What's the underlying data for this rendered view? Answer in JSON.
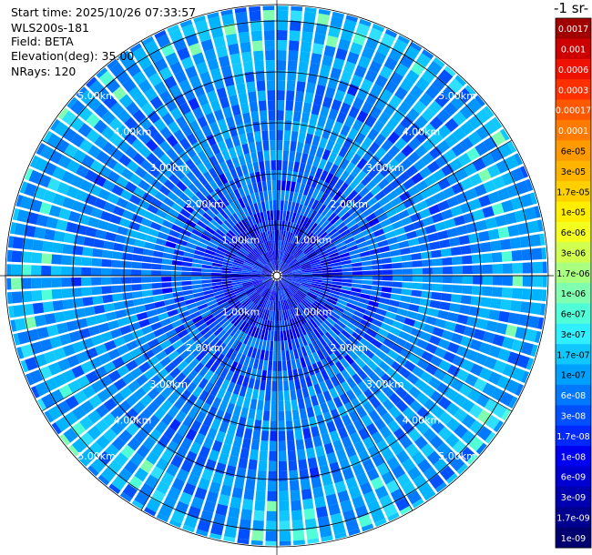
{
  "info": {
    "start_time": "Start time: 2025/10/26 07:33:57",
    "instrument": "WLS200s-181",
    "field": "Field: BETA",
    "elevation": "Elevation(deg): 35.00",
    "nrays": "NRays: 120"
  },
  "colorbar": {
    "unit_label": "-1 sr-",
    "ticks": [
      "0.0017",
      "0.001",
      "0.0006",
      "0.0003",
      "0.00017",
      "0.0001",
      "6e-05",
      "3e-05",
      "1.7e-05",
      "1e-05",
      "6e-06",
      "3e-06",
      "1.7e-06",
      "1e-06",
      "6e-07",
      "3e-07",
      "1.7e-07",
      "1e-07",
      "6e-08",
      "3e-08",
      "1.7e-08",
      "1e-08",
      "6e-09",
      "3e-09",
      "1.7e-09",
      "1e-09"
    ],
    "colors": [
      "#a00000",
      "#cc0000",
      "#ee1000",
      "#ff3000",
      "#ff5800",
      "#ff7a00",
      "#ff9a00",
      "#ffb400",
      "#ffd000",
      "#ffee00",
      "#f4ff20",
      "#d0ff50",
      "#a8ff80",
      "#80ffb0",
      "#50ffd8",
      "#30f0ff",
      "#10c8ff",
      "#00a0ff",
      "#0078ff",
      "#0050ff",
      "#0028ff",
      "#0000f0",
      "#0000d0",
      "#0000b0",
      "#000090",
      "#000070"
    ]
  },
  "chart_data": {
    "type": "heatmap",
    "projection": "polar (PPI)",
    "field": "BETA",
    "elevation_deg": 35.0,
    "nrays": 120,
    "range_rings_km": [
      1,
      2,
      3,
      4,
      5
    ],
    "range_ring_labels": [
      "1.00km",
      "2.00km",
      "3.00km",
      "4.00km",
      "5.00km"
    ],
    "max_range_km": 5.3,
    "azimuth_spokes_deg": [
      0,
      30,
      60,
      90,
      120,
      150,
      180,
      210,
      240,
      270,
      300,
      330
    ],
    "colorscale": "log, 1e-09 to 0.0017 (jet)",
    "dominant_values_by_range_km": [
      {
        "range": [
          0,
          1.5
        ],
        "beta": "1e-09 to 3e-08"
      },
      {
        "range": [
          1.5,
          4.0
        ],
        "beta": "3e-08 to 1e-07"
      },
      {
        "range": [
          4.0,
          5.3
        ],
        "beta": "6e-08 to 3e-07"
      }
    ]
  }
}
